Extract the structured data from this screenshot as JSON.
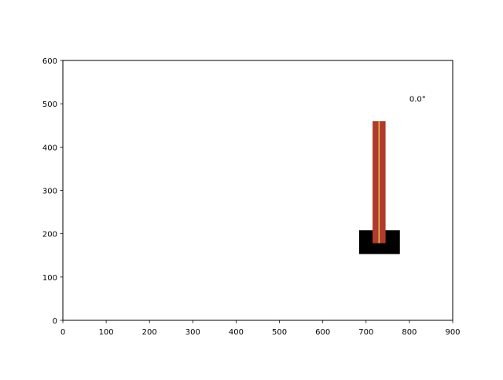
{
  "plot": {
    "xlim": [
      0,
      900
    ],
    "ylim": [
      0,
      600
    ],
    "xticks": [
      0,
      100,
      200,
      300,
      400,
      500,
      600,
      700,
      800,
      900
    ],
    "yticks": [
      0,
      100,
      200,
      300,
      400,
      500,
      600
    ],
    "xtick_labels": [
      "0",
      "100",
      "200",
      "300",
      "400",
      "500",
      "600",
      "700",
      "800",
      "900"
    ],
    "ytick_labels": [
      "0",
      "100",
      "200",
      "300",
      "400",
      "500",
      "600"
    ]
  },
  "scene": {
    "cart": {
      "x_min": 684,
      "x_max": 778,
      "y_min": 153,
      "y_max": 208,
      "color": "#000000"
    },
    "pole": {
      "x_min": 715,
      "x_max": 745,
      "y_min": 178,
      "y_max": 460,
      "color": "#b03a2e",
      "axis_color": "#e8c44a"
    },
    "angle_label": "0.0°",
    "angle_label_x": 800,
    "angle_label_y": 505
  }
}
